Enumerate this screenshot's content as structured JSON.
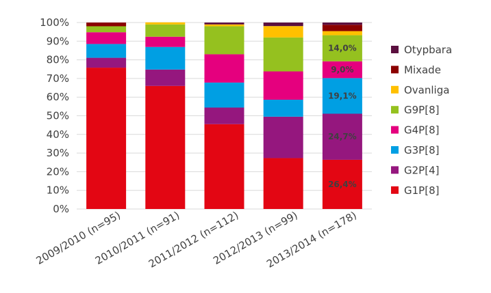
{
  "chart_data": {
    "type": "bar",
    "stacked": true,
    "percent": true,
    "categories": [
      "2009/2010 (n=95)",
      "2010/2011 (n=91)",
      "2011/2012 (n=112)",
      "2012/2013 (n=99)",
      "2013/2014 (n=178)"
    ],
    "yticks": [
      "0%",
      "10%",
      "20%",
      "30%",
      "40%",
      "50%",
      "60%",
      "70%",
      "80%",
      "90%",
      "100%"
    ],
    "ylim": [
      0,
      100
    ],
    "grid": true,
    "legend_position": "right",
    "series": [
      {
        "name": "G1P[8]",
        "color": "#e30613",
        "values": [
          75.8,
          66.0,
          45.5,
          27.3,
          26.4
        ]
      },
      {
        "name": "G2P[4]",
        "color": "#95177e",
        "values": [
          5.3,
          8.8,
          8.9,
          22.2,
          24.7
        ]
      },
      {
        "name": "G3P[8]",
        "color": "#009fe3",
        "values": [
          7.4,
          12.1,
          13.4,
          9.1,
          19.1
        ]
      },
      {
        "name": "G4P[8]",
        "color": "#e5007e",
        "values": [
          6.3,
          5.5,
          15.2,
          15.2,
          9.0
        ]
      },
      {
        "name": "G9P[8]",
        "color": "#95c11f",
        "values": [
          3.2,
          6.6,
          15.0,
          18.2,
          14.0
        ]
      },
      {
        "name": "Ovanliga",
        "color": "#ffc000",
        "values": [
          0,
          1.1,
          1.0,
          6.1,
          2.2
        ]
      },
      {
        "name": "Mixade",
        "color": "#8b0000",
        "values": [
          2.0,
          0,
          0,
          0,
          3.4
        ]
      },
      {
        "name": "Otypbara",
        "color": "#5b0f3f",
        "values": [
          0,
          0,
          1.0,
          1.9,
          1.2
        ]
      }
    ],
    "data_labels": [
      {
        "series": "G1P[8]",
        "category": "2013/2014 (n=178)",
        "text": "26,4%"
      },
      {
        "series": "G2P[4]",
        "category": "2013/2014 (n=178)",
        "text": "24,7%"
      },
      {
        "series": "G3P[8]",
        "category": "2013/2014 (n=178)",
        "text": "19,1%"
      },
      {
        "series": "G4P[8]",
        "category": "2013/2014 (n=178)",
        "text": "9,0%"
      },
      {
        "series": "G9P[8]",
        "category": "2013/2014 (n=178)",
        "text": "14,0%"
      }
    ],
    "legend_order": [
      "Otypbara",
      "Mixade",
      "Ovanliga",
      "G9P[8]",
      "G4P[8]",
      "G3P[8]",
      "G2P[4]",
      "G1P[8]"
    ]
  }
}
